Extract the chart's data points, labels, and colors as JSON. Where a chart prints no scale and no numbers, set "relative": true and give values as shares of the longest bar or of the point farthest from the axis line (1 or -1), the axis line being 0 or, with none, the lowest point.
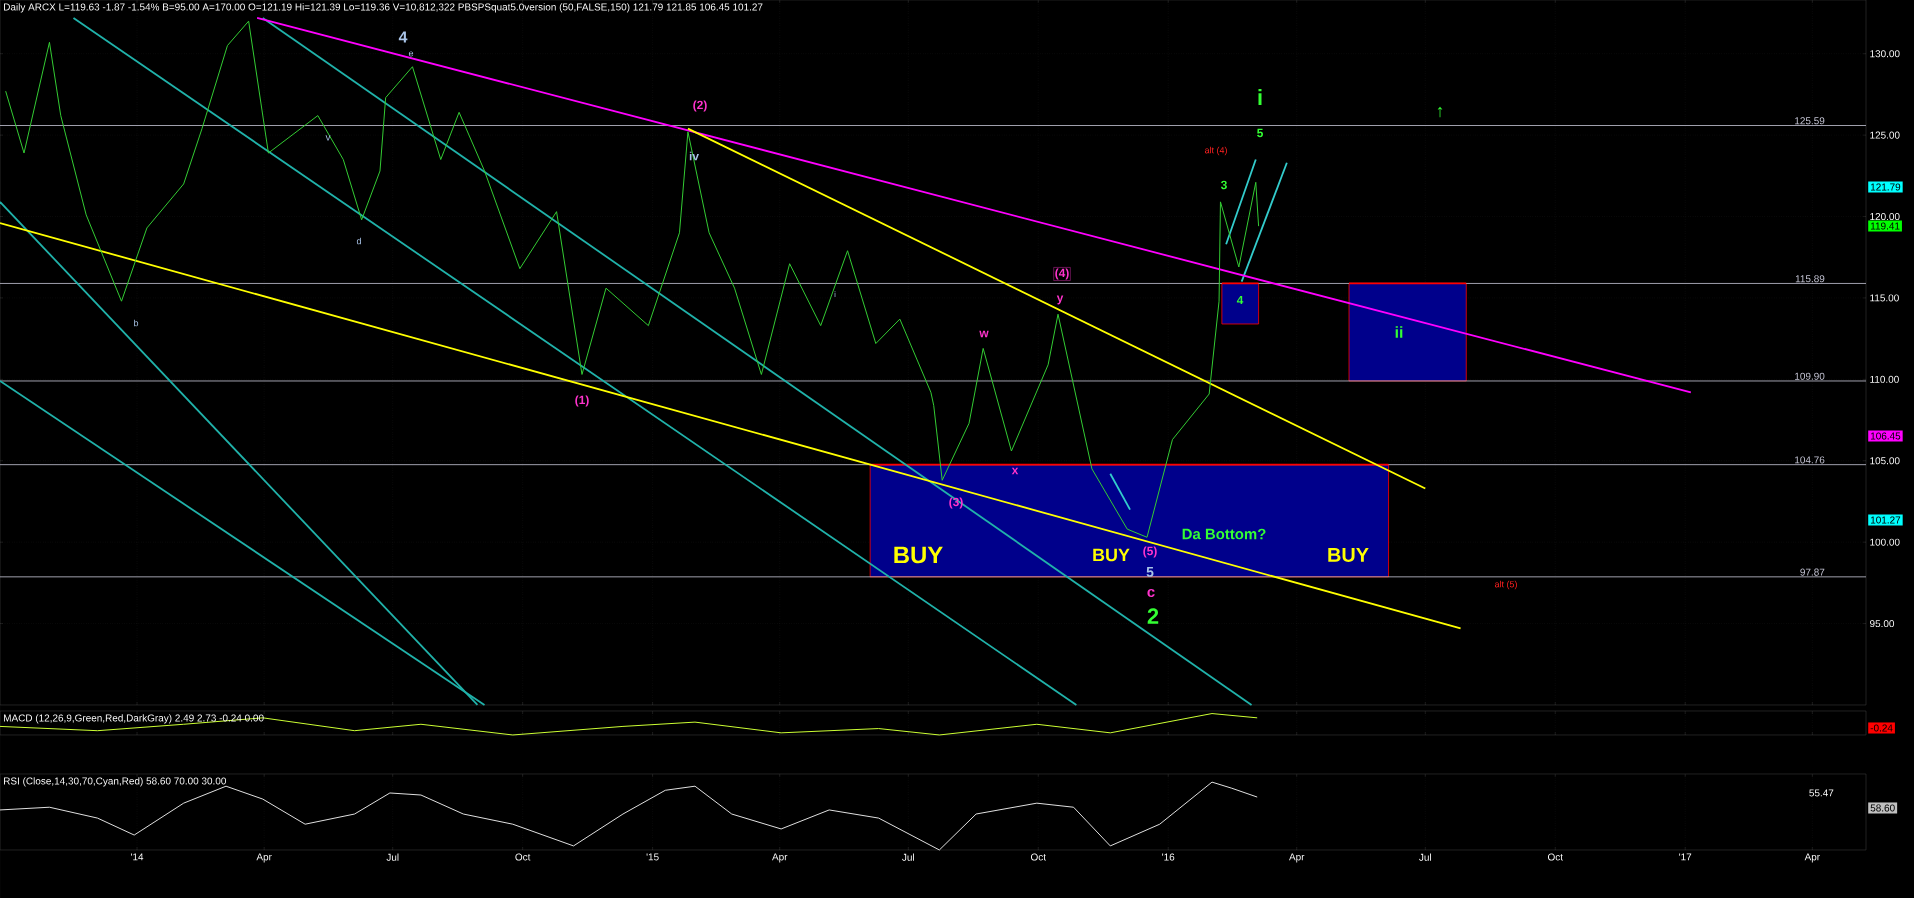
{
  "chart_data": [
    {
      "type": "line",
      "title": "Daily ARCX L=119.63 -1.87 -1.54% B=95.00 A=170.00 O=121.19 Hi=121.39 Lo=119.36 V=10,812,322 PBSPSquat5.0version (50,FALSE,150) 121.79 121.85 106.45 101.27",
      "xlim": [
        "2013-09-26",
        "2017-05-09"
      ],
      "xticks": [
        {
          "value": "2014-01-01",
          "label": null
        },
        {
          "value": "2014-04-01",
          "label": null
        },
        {
          "value": "2014-07-01",
          "label": null
        },
        {
          "value": "2014-10-01",
          "label": null
        },
        {
          "value": "2015-01-01",
          "label": null
        },
        {
          "value": "2015-04-01",
          "label": null
        },
        {
          "value": "2015-07-01",
          "label": null
        },
        {
          "value": "2015-10-01",
          "label": null
        },
        {
          "value": "2016-01-01",
          "label": null
        },
        {
          "value": "2016-04-01",
          "label": null
        },
        {
          "value": "2016-07-01",
          "label": null
        },
        {
          "value": "2016-10-01",
          "label": null
        },
        {
          "value": "2017-01-01",
          "label": null
        },
        {
          "value": "2017-04-01",
          "label": null
        }
      ],
      "ylim": [
        90,
        133.3
      ],
      "yticks": [
        {
          "value": 95,
          "label": "95.00"
        },
        {
          "value": 100,
          "label": "100.00"
        },
        {
          "value": 105,
          "label": "105.00"
        },
        {
          "value": 110,
          "label": "110.00"
        },
        {
          "value": 115,
          "label": "115.00"
        },
        {
          "value": 120,
          "label": "120.00"
        },
        {
          "value": 125,
          "label": "125.00"
        },
        {
          "value": 130,
          "label": "130.00"
        }
      ],
      "tick_labels": "y",
      "grid": true,
      "series": [
        {
          "type": "line",
          "color": "#ff0000",
          "x": [
            "2015-06-04",
            "2016-06-05"
          ],
          "values": [
            104.76,
            104.76
          ],
          "lower": [
            97.87,
            97.87
          ],
          "upper": [
            104.76,
            104.76
          ]
        },
        {
          "type": "line",
          "color": "#ff0000",
          "x": [
            "2016-05-08",
            "2016-07-30"
          ],
          "values": [
            115.89,
            115.89
          ],
          "lower": [
            109.9,
            109.9
          ],
          "upper": [
            115.89,
            115.89
          ]
        },
        {
          "type": "line",
          "color": "#ff0000",
          "x": [
            "2016-02-08",
            "2016-03-05"
          ],
          "values": [
            115.89,
            115.89
          ],
          "lower": [
            113.4,
            113.4
          ],
          "upper": [
            115.89,
            115.89
          ]
        },
        {
          "type": "line",
          "color": "#20b2aa",
          "x": [
            "2013-11-17",
            "2015-10-28"
          ],
          "values": [
            132.2,
            90.0
          ]
        },
        {
          "type": "line",
          "color": "#20b2aa",
          "x": [
            "2014-03-31",
            "2016-02-29"
          ],
          "values": [
            132.2,
            90.0
          ]
        },
        {
          "type": "line",
          "color": "#20b2aa",
          "x": [
            "2013-09-26",
            "2014-08-30"
          ],
          "values": [
            120.9,
            90.0
          ]
        },
        {
          "type": "line",
          "color": "#20b2aa",
          "x": [
            "2013-09-26",
            "2014-09-04"
          ],
          "values": [
            109.9,
            90.0
          ]
        },
        {
          "type": "line",
          "color": "#33cccc",
          "x": [
            "2016-02-11",
            "2016-03-03"
          ],
          "values": [
            118.3,
            123.5
          ]
        },
        {
          "type": "line",
          "color": "#33cccc",
          "x": [
            "2016-02-22",
            "2016-03-25"
          ],
          "values": [
            116.0,
            123.3
          ]
        },
        {
          "type": "line",
          "color": "#33cccc",
          "x": [
            "2015-11-21",
            "2015-12-05"
          ],
          "values": [
            104.2,
            102.0
          ]
        },
        {
          "type": "line",
          "color": "#ff00ff",
          "x": [
            "2014-03-27",
            "2017-01-05"
          ],
          "values": [
            132.2,
            109.2
          ]
        },
        {
          "type": "line",
          "color": "#ffff00",
          "x": [
            "2015-01-26",
            "2016-07-01"
          ],
          "values": [
            125.4,
            103.3
          ]
        },
        {
          "type": "line",
          "color": "#ffff00",
          "x": [
            "2013-09-26",
            "2016-07-26"
          ],
          "values": [
            119.6,
            94.7
          ]
        },
        {
          "type": "line",
          "color": "#33cc33",
          "x": [
            "2013-09-30",
            "2013-10-13",
            "2013-10-31",
            "2013-11-08",
            "2013-11-26",
            "2013-12-21",
            "2014-01-08",
            "2014-02-03",
            "2014-02-16",
            "2014-03-06",
            "2014-03-21",
            "2014-04-04",
            "2014-05-09",
            "2014-05-27",
            "2014-06-09",
            "2014-06-22",
            "2014-06-26",
            "2014-07-15",
            "2014-08-04",
            "2014-08-17",
            "2014-09-04",
            "2014-09-29",
            "2014-10-25",
            "2014-11-12",
            "2014-11-29",
            "2014-12-29",
            "2015-01-20",
            "2015-01-26",
            "2015-02-10",
            "2015-02-28",
            "2015-03-19",
            "2015-04-08",
            "2015-04-30",
            "2015-05-19",
            "2015-06-08",
            "2015-06-25",
            "2015-07-17",
            "2015-07-19",
            "2015-07-25",
            "2015-08-13",
            "2015-08-23",
            "2015-09-12",
            "2015-10-08",
            "2015-10-15",
            "2015-11-08",
            "2015-12-03",
            "2015-12-17",
            "2016-01-04",
            "2016-01-30",
            "2016-02-06",
            "2016-02-07",
            "2016-02-20",
            "2016-03-03",
            "2016-03-05"
          ],
          "values": [
            127.7,
            123.9,
            130.7,
            126.2,
            120.1,
            114.8,
            119.3,
            122.0,
            125.4,
            130.5,
            132.0,
            123.9,
            126.2,
            123.5,
            119.8,
            122.8,
            127.3,
            129.2,
            123.5,
            126.4,
            122.8,
            116.8,
            120.3,
            110.3,
            115.6,
            113.3,
            119.0,
            125.2,
            119.0,
            115.6,
            110.3,
            117.1,
            113.3,
            117.9,
            112.2,
            113.7,
            109.2,
            108.4,
            103.8,
            107.3,
            111.9,
            105.6,
            110.9,
            114.0,
            104.5,
            100.8,
            100.3,
            106.3,
            109.1,
            114.8,
            120.9,
            116.9,
            122.1,
            119.41
          ]
        }
      ],
      "ref_lines": [
        {
          "axis": "y",
          "value": 125.59,
          "label": "125.59",
          "color": "#c8c8d8"
        },
        {
          "axis": "y",
          "value": 115.89,
          "label": "115.89",
          "color": "#c8c8d8"
        },
        {
          "axis": "y",
          "value": 109.9,
          "label": "109.90",
          "color": "#c8c8d8"
        },
        {
          "axis": "y",
          "value": 104.76,
          "label": "104.76",
          "color": "#c8c8d8"
        },
        {
          "axis": "y",
          "value": 97.87,
          "label": "97.87",
          "color": "#c8c8d8"
        }
      ],
      "annotations": [
        "4",
        "e",
        "v",
        "d",
        "b",
        "(2)",
        "iv",
        "(1)",
        "i",
        "(3)",
        "w",
        "x",
        "(4)",
        "y",
        "BUY",
        "BUY",
        "BUY",
        "Da Bottom?",
        "(5)",
        "5",
        "c",
        "2",
        "3",
        "4",
        "5",
        "i",
        "alt (4)",
        "ii",
        "alt (5)",
        "↑",
        "121.79",
        "119.41",
        "106.45",
        "101.27"
      ]
    },
    {
      "type": "line",
      "title": "MACD (12,26,9,Green,Red,DarkGray) 2.49 2.73 -0.24 0.00",
      "relative": true,
      "color": "#ccff33",
      "xlim": [
        "2013-09-26",
        "2017-05-09"
      ],
      "xticks": [
        {
          "value": "2014-01-01",
          "label": null
        },
        {
          "value": "2014-04-01",
          "label": null
        },
        {
          "value": "2014-07-01",
          "label": null
        },
        {
          "value": "2014-10-01",
          "label": null
        },
        {
          "value": "2015-01-01",
          "label": null
        },
        {
          "value": "2015-04-01",
          "label": null
        },
        {
          "value": "2015-07-01",
          "label": null
        },
        {
          "value": "2015-10-01",
          "label": null
        },
        {
          "value": "2016-01-01",
          "label": null
        },
        {
          "value": "2016-04-01",
          "label": null
        },
        {
          "value": "2016-07-01",
          "label": null
        },
        {
          "value": "2016-10-01",
          "label": null
        },
        {
          "value": "2017-01-01",
          "label": null
        },
        {
          "value": "2017-04-01",
          "label": null
        }
      ],
      "tick_labels": false,
      "grid": "x",
      "x": [
        "2013-09-26",
        "2013-12-04",
        "2014-02-03",
        "2014-03-31",
        "2014-06-04",
        "2014-07-21",
        "2014-09-24",
        "2014-12-11",
        "2015-01-31",
        "2015-04-02",
        "2015-06-10",
        "2015-07-23",
        "2015-09-30",
        "2015-11-21",
        "2016-02-01",
        "2016-03-04"
      ],
      "values": [
        0.4,
        0.2,
        0.5,
        0.8,
        0.2,
        0.5,
        0,
        0.4,
        0.6,
        0.1,
        0.3,
        0,
        0.5,
        0.1,
        1,
        0.8
      ],
      "annotations": [
        "-0.24"
      ]
    },
    {
      "type": "line",
      "title": "RSI (Close,14,30,70,Cyan,Red) 58.60 70.00 30.00",
      "relative": true,
      "color": "#e0e0e0",
      "xlim": [
        "2013-09-26",
        "2017-05-09"
      ],
      "xticks": [
        {
          "value": "2014-01-01",
          "label": "'14"
        },
        {
          "value": "2014-04-01",
          "label": "Apr"
        },
        {
          "value": "2014-07-01",
          "label": "Jul"
        },
        {
          "value": "2014-10-01",
          "label": "Oct"
        },
        {
          "value": "2015-01-01",
          "label": "'15"
        },
        {
          "value": "2015-04-01",
          "label": "Apr"
        },
        {
          "value": "2015-07-01",
          "label": "Jul"
        },
        {
          "value": "2015-10-01",
          "label": "Oct"
        },
        {
          "value": "2016-01-01",
          "label": "'16"
        },
        {
          "value": "2016-04-01",
          "label": "Apr"
        },
        {
          "value": "2016-07-01",
          "label": "Jul"
        },
        {
          "value": "2016-10-01",
          "label": "Oct"
        },
        {
          "value": "2017-01-01",
          "label": "'17"
        },
        {
          "value": "2017-04-01",
          "label": "Apr"
        }
      ],
      "tick_labels": "x",
      "grid": "x",
      "x": [
        "2013-09-26",
        "2013-10-31",
        "2013-12-04",
        "2013-12-30",
        "2014-02-03",
        "2014-03-05",
        "2014-03-31",
        "2014-04-30",
        "2014-06-04",
        "2014-06-29",
        "2014-07-21",
        "2014-08-20",
        "2014-09-24",
        "2014-11-06",
        "2014-12-11",
        "2015-01-10",
        "2015-01-31",
        "2015-02-26",
        "2015-04-02",
        "2015-05-06",
        "2015-06-10",
        "2015-07-23",
        "2015-08-18",
        "2015-09-30",
        "2015-10-26",
        "2015-11-21",
        "2015-12-26",
        "2016-02-01",
        "2016-02-15",
        "2016-03-04"
      ],
      "values": [
        0.59,
        0.63,
        0.47,
        0.22,
        0.69,
        0.94,
        0.75,
        0.38,
        0.53,
        0.84,
        0.81,
        0.53,
        0.38,
        0.06,
        0.53,
        0.88,
        0.94,
        0.53,
        0.31,
        0.59,
        0.47,
        0,
        0.53,
        0.69,
        0.63,
        0.06,
        0.38,
        1,
        0.91,
        0.78
      ],
      "annotations": [
        "55.47",
        "58.60"
      ]
    }
  ]
}
